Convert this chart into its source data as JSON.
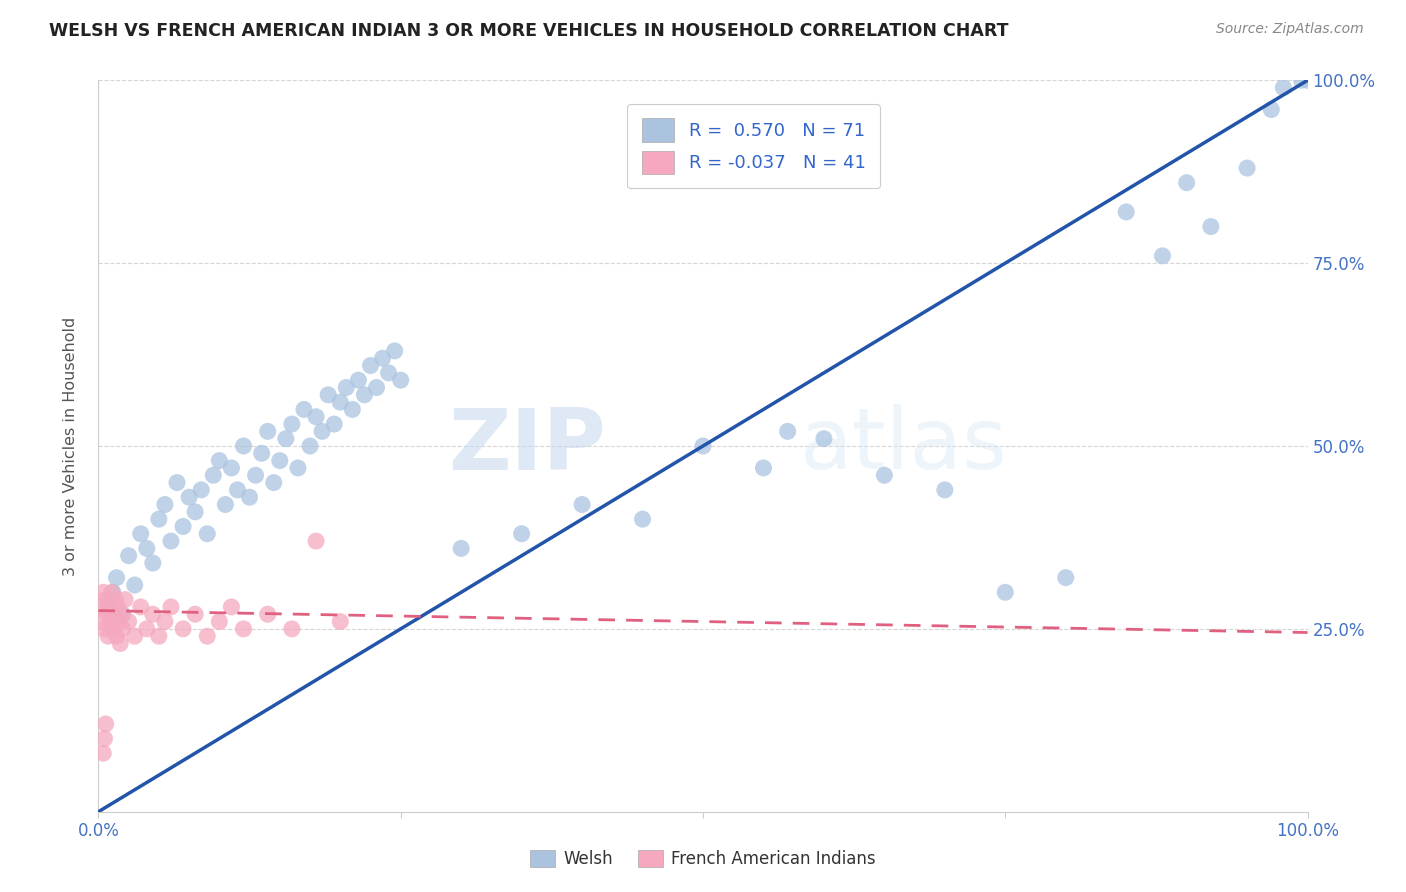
{
  "title": "WELSH VS FRENCH AMERICAN INDIAN 3 OR MORE VEHICLES IN HOUSEHOLD CORRELATION CHART",
  "source": "Source: ZipAtlas.com",
  "ylabel": "3 or more Vehicles in Household",
  "watermark_zip": "ZIP",
  "watermark_atlas": "atlas",
  "welsh_R": 0.57,
  "welsh_N": 71,
  "french_R": -0.037,
  "french_N": 41,
  "welsh_color": "#aac4e0",
  "welsh_line_color": "#2255aa",
  "french_color": "#f5a8be",
  "french_line_color": "#e06080",
  "welsh_scatter": [
    [
      0.8,
      28.0
    ],
    [
      1.2,
      30.0
    ],
    [
      1.5,
      32.0
    ],
    [
      2.0,
      27.0
    ],
    [
      2.5,
      35.0
    ],
    [
      3.0,
      31.0
    ],
    [
      3.5,
      38.0
    ],
    [
      4.0,
      36.0
    ],
    [
      4.5,
      34.0
    ],
    [
      5.0,
      40.0
    ],
    [
      5.5,
      42.0
    ],
    [
      6.0,
      37.0
    ],
    [
      6.5,
      45.0
    ],
    [
      7.0,
      39.0
    ],
    [
      7.5,
      43.0
    ],
    [
      8.0,
      41.0
    ],
    [
      8.5,
      44.0
    ],
    [
      9.0,
      38.0
    ],
    [
      9.5,
      46.0
    ],
    [
      10.0,
      48.0
    ],
    [
      10.5,
      42.0
    ],
    [
      11.0,
      47.0
    ],
    [
      11.5,
      44.0
    ],
    [
      12.0,
      50.0
    ],
    [
      12.5,
      43.0
    ],
    [
      13.0,
      46.0
    ],
    [
      13.5,
      49.0
    ],
    [
      14.0,
      52.0
    ],
    [
      14.5,
      45.0
    ],
    [
      15.0,
      48.0
    ],
    [
      15.5,
      51.0
    ],
    [
      16.0,
      53.0
    ],
    [
      16.5,
      47.0
    ],
    [
      17.0,
      55.0
    ],
    [
      17.5,
      50.0
    ],
    [
      18.0,
      54.0
    ],
    [
      18.5,
      52.0
    ],
    [
      19.0,
      57.0
    ],
    [
      19.5,
      53.0
    ],
    [
      20.0,
      56.0
    ],
    [
      20.5,
      58.0
    ],
    [
      21.0,
      55.0
    ],
    [
      21.5,
      59.0
    ],
    [
      22.0,
      57.0
    ],
    [
      22.5,
      61.0
    ],
    [
      23.0,
      58.0
    ],
    [
      23.5,
      62.0
    ],
    [
      24.0,
      60.0
    ],
    [
      24.5,
      63.0
    ],
    [
      25.0,
      59.0
    ],
    [
      30.0,
      36.0
    ],
    [
      35.0,
      38.0
    ],
    [
      40.0,
      42.0
    ],
    [
      45.0,
      40.0
    ],
    [
      50.0,
      50.0
    ],
    [
      55.0,
      47.0
    ],
    [
      57.0,
      52.0
    ],
    [
      60.0,
      51.0
    ],
    [
      65.0,
      46.0
    ],
    [
      70.0,
      44.0
    ],
    [
      75.0,
      30.0
    ],
    [
      80.0,
      32.0
    ],
    [
      85.0,
      82.0
    ],
    [
      88.0,
      76.0
    ],
    [
      90.0,
      86.0
    ],
    [
      92.0,
      80.0
    ],
    [
      95.0,
      88.0
    ],
    [
      97.0,
      96.0
    ],
    [
      98.0,
      99.0
    ],
    [
      99.5,
      100.0
    ],
    [
      100.0,
      100.0
    ]
  ],
  "french_scatter": [
    [
      0.2,
      28.0
    ],
    [
      0.3,
      26.0
    ],
    [
      0.4,
      30.0
    ],
    [
      0.5,
      25.0
    ],
    [
      0.6,
      29.0
    ],
    [
      0.7,
      27.0
    ],
    [
      0.8,
      24.0
    ],
    [
      0.9,
      28.0
    ],
    [
      1.0,
      26.0
    ],
    [
      1.1,
      30.0
    ],
    [
      1.2,
      25.0
    ],
    [
      1.3,
      27.0
    ],
    [
      1.4,
      29.0
    ],
    [
      1.5,
      24.0
    ],
    [
      1.6,
      28.0
    ],
    [
      1.7,
      26.0
    ],
    [
      1.8,
      23.0
    ],
    [
      1.9,
      27.0
    ],
    [
      2.0,
      25.0
    ],
    [
      2.2,
      29.0
    ],
    [
      2.5,
      26.0
    ],
    [
      3.0,
      24.0
    ],
    [
      3.5,
      28.0
    ],
    [
      4.0,
      25.0
    ],
    [
      4.5,
      27.0
    ],
    [
      5.0,
      24.0
    ],
    [
      5.5,
      26.0
    ],
    [
      6.0,
      28.0
    ],
    [
      7.0,
      25.0
    ],
    [
      8.0,
      27.0
    ],
    [
      9.0,
      24.0
    ],
    [
      10.0,
      26.0
    ],
    [
      11.0,
      28.0
    ],
    [
      12.0,
      25.0
    ],
    [
      14.0,
      27.0
    ],
    [
      16.0,
      25.0
    ],
    [
      18.0,
      37.0
    ],
    [
      20.0,
      26.0
    ],
    [
      0.4,
      8.0
    ],
    [
      0.5,
      10.0
    ],
    [
      0.6,
      12.0
    ]
  ],
  "xlim": [
    0,
    100
  ],
  "ylim": [
    0,
    100
  ],
  "yticks_right": [
    25.0,
    50.0,
    75.0,
    100.0
  ],
  "ytick_labels_right": [
    "25.0%",
    "50.0%",
    "75.0%",
    "100.0%"
  ],
  "welsh_line_x0": 0,
  "welsh_line_y0": 0,
  "welsh_line_x1": 100,
  "welsh_line_y1": 100,
  "french_line_x0": 0,
  "french_line_y0": 27.5,
  "french_line_x1": 100,
  "french_line_y1": 24.5
}
